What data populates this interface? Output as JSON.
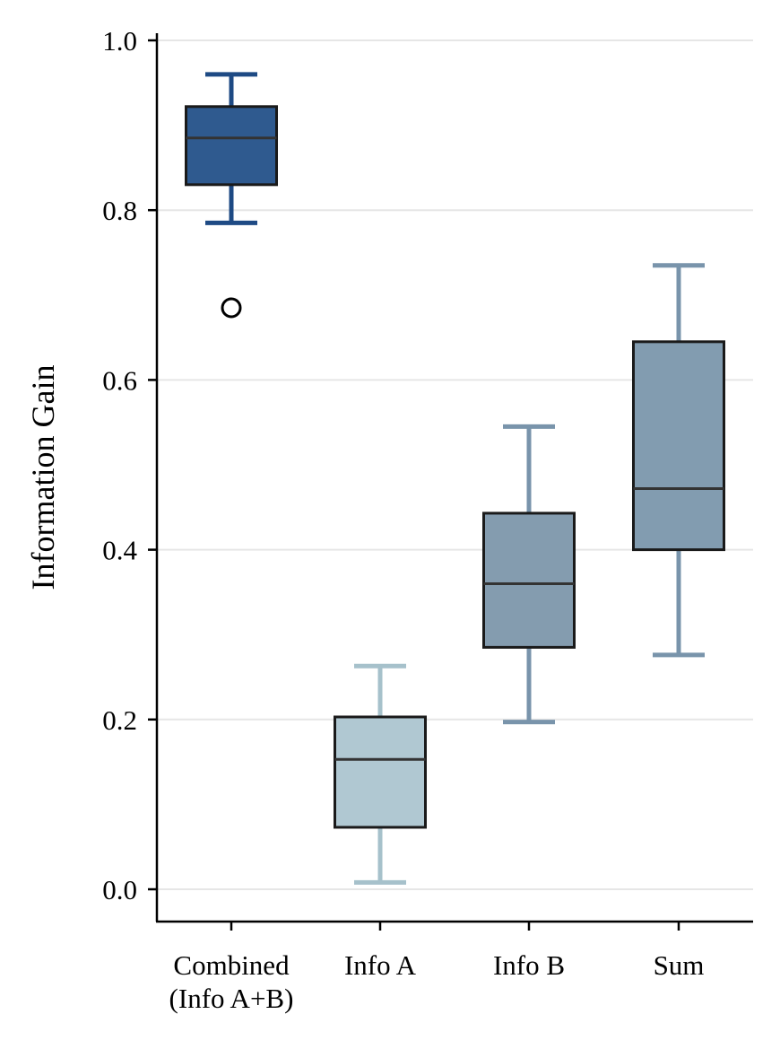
{
  "chart_data": {
    "type": "box",
    "title": "",
    "xlabel": "",
    "ylabel": "Information Gain",
    "ylim": [
      -0.04,
      1.01
    ],
    "yticks": [
      0.0,
      0.2,
      0.4,
      0.6,
      0.8,
      1.0
    ],
    "ytick_labels": [
      "0.0",
      "0.2",
      "0.4",
      "0.6",
      "0.8",
      "1.0"
    ],
    "grid": "horizontal",
    "categories": [
      [
        "Combined",
        "(Info A+B)"
      ],
      [
        "Info A"
      ],
      [
        "Info B"
      ],
      [
        "Sum"
      ]
    ],
    "boxes": [
      {
        "whisker_low": 0.785,
        "q1": 0.83,
        "median": 0.885,
        "q3": 0.922,
        "whisker_high": 0.96,
        "outliers": [
          0.685
        ],
        "color": "#2f5a8f",
        "whisker_color": "#1e4a84"
      },
      {
        "whisker_low": 0.008,
        "q1": 0.073,
        "median": 0.153,
        "q3": 0.203,
        "whisker_high": 0.263,
        "outliers": [],
        "color": "#b0c8d2",
        "whisker_color": "#a6c1cb"
      },
      {
        "whisker_low": 0.197,
        "q1": 0.285,
        "median": 0.36,
        "q3": 0.443,
        "whisker_high": 0.545,
        "outliers": [],
        "color": "#849caf",
        "whisker_color": "#7994ab"
      },
      {
        "whisker_low": 0.276,
        "q1": 0.4,
        "median": 0.472,
        "q3": 0.645,
        "whisker_high": 0.735,
        "outliers": [],
        "color": "#829cb0",
        "whisker_color": "#7994ab"
      }
    ],
    "box_edge_color": "#1a1a1a",
    "median_color": "#333333",
    "grid_color": "#e6e6e6"
  }
}
